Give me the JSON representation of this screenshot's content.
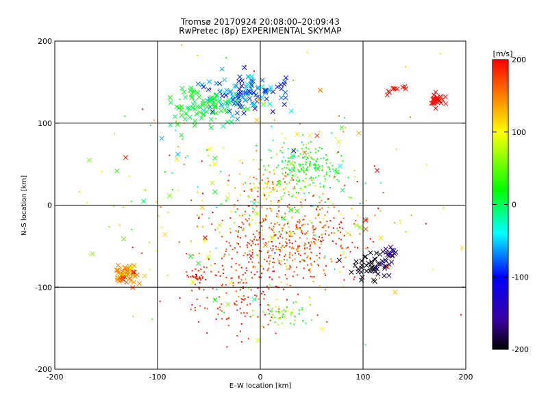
{
  "header": {
    "title_line1": "Tromsø 20170924 20:08:00–20:09:43",
    "title_line2": "RwPretec (8p) EXPERIMENTAL SKYMAP"
  },
  "chart_data": {
    "type": "scatter",
    "xlabel": "E–W location [km]",
    "ylabel": "N–S location [km]",
    "xlim": [
      -200,
      200
    ],
    "ylim": [
      -200,
      200
    ],
    "xticks": [
      -200,
      -100,
      0,
      100,
      200
    ],
    "yticks": [
      -200,
      -100,
      0,
      100,
      200
    ],
    "grid": true,
    "markers": [
      "x (larger)",
      "dot (small)"
    ],
    "colorbar": {
      "label": "[m/s]",
      "range": [
        -200,
        200
      ],
      "ticks": [
        200,
        100,
        0,
        -100,
        -200
      ],
      "colormap": [
        "#000000",
        "#3a00a0",
        "#0000ff",
        "#00ffff",
        "#00ff00",
        "#ffff00",
        "#ff0000"
      ],
      "placement": "right"
    },
    "clusters": [
      {
        "center": [
          -18,
          135
        ],
        "spread": [
          30,
          20
        ],
        "count": 120,
        "velocity": -70,
        "vspread": 40,
        "marker": "x"
      },
      {
        "center": [
          -60,
          120
        ],
        "spread": [
          30,
          20
        ],
        "count": 80,
        "velocity": 10,
        "vspread": 20,
        "marker": "x"
      },
      {
        "center": [
          45,
          45
        ],
        "spread": [
          30,
          25
        ],
        "count": 180,
        "velocity": 20,
        "vspread": 35,
        "marker": "dot"
      },
      {
        "center": [
          10,
          20
        ],
        "spread": [
          25,
          15
        ],
        "count": 80,
        "velocity": 130,
        "vspread": 40,
        "marker": "dot"
      },
      {
        "center": [
          30,
          -40
        ],
        "spread": [
          55,
          45
        ],
        "count": 420,
        "velocity": 170,
        "vspread": 45,
        "marker": "dot"
      },
      {
        "center": [
          -130,
          -85
        ],
        "spread": [
          10,
          10
        ],
        "count": 60,
        "velocity": 150,
        "vspread": 40,
        "marker": "x"
      },
      {
        "center": [
          -60,
          -85
        ],
        "spread": [
          8,
          8
        ],
        "count": 30,
        "velocity": 195,
        "vspread": 8,
        "marker": "dot"
      },
      {
        "center": [
          25,
          -130
        ],
        "spread": [
          20,
          12
        ],
        "count": 60,
        "velocity": 50,
        "vspread": 50,
        "marker": "dot"
      },
      {
        "center": [
          105,
          -75
        ],
        "spread": [
          15,
          20
        ],
        "count": 45,
        "velocity": -195,
        "vspread": 8,
        "marker": "x"
      },
      {
        "center": [
          125,
          -60
        ],
        "spread": [
          10,
          10
        ],
        "count": 20,
        "velocity": -160,
        "vspread": 30,
        "marker": "x"
      },
      {
        "center": [
          172,
          128
        ],
        "spread": [
          6,
          6
        ],
        "count": 30,
        "velocity": 195,
        "vspread": 8,
        "marker": "x"
      },
      {
        "center": [
          130,
          140
        ],
        "spread": [
          10,
          5
        ],
        "count": 10,
        "velocity": 195,
        "vspread": 5,
        "marker": "x"
      },
      {
        "center": [
          -20,
          -100
        ],
        "spread": [
          45,
          50
        ],
        "count": 160,
        "velocity": 185,
        "vspread": 15,
        "marker": "dot"
      },
      {
        "center": [
          0,
          0
        ],
        "spread": [
          130,
          120
        ],
        "count": 260,
        "velocity": 80,
        "vspread": 120,
        "marker": "dot"
      },
      {
        "center": [
          0,
          0
        ],
        "spread": [
          130,
          120
        ],
        "count": 70,
        "velocity": 80,
        "vspread": 120,
        "marker": "x"
      }
    ]
  }
}
